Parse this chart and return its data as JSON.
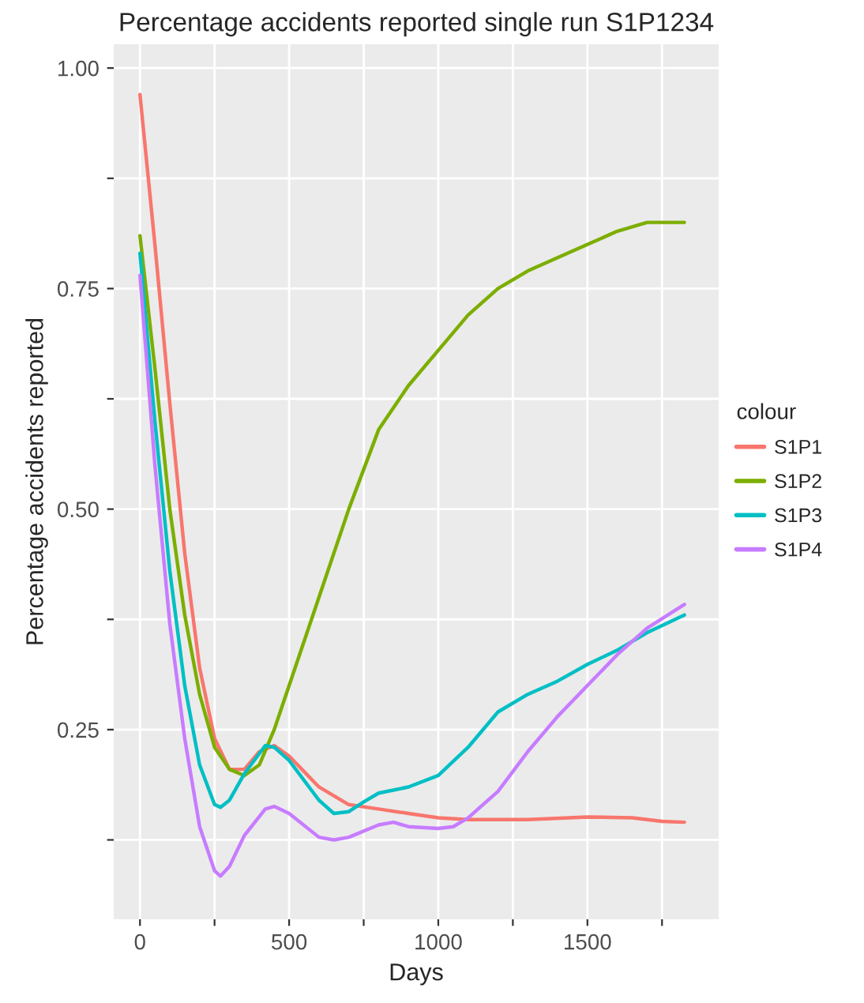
{
  "chart_data": {
    "type": "line",
    "title": "Percentage accidents reported single run S1P1234",
    "xlabel": "Days",
    "ylabel": "Percentage accidents reported",
    "legend_title": "colour",
    "legend": "right",
    "grid": true,
    "marker": "none",
    "line_style": "solid",
    "xlim": [
      -88,
      1940
    ],
    "ylim": [
      0.035,
      1.027
    ],
    "xticks": [
      0,
      {
        "value": 250,
        "label": null
      },
      500,
      {
        "value": 750,
        "label": null
      },
      1000,
      {
        "value": 1250,
        "label": null
      },
      1500,
      {
        "value": 1750,
        "label": null
      }
    ],
    "yticks": [
      {
        "value": 0.125,
        "label": null
      },
      {
        "value": 0.25,
        "label": "0.25"
      },
      {
        "value": 0.375,
        "label": null
      },
      {
        "value": 0.5,
        "label": "0.50"
      },
      {
        "value": 0.625,
        "label": null
      },
      {
        "value": 0.75,
        "label": "0.75"
      },
      {
        "value": 0.875,
        "label": null
      },
      {
        "value": 1.0,
        "label": "1.00"
      }
    ],
    "series": [
      {
        "name": "S1P1",
        "color": "#f8766d",
        "x": [
          0,
          50,
          100,
          150,
          200,
          250,
          300,
          350,
          400,
          450,
          500,
          600,
          700,
          800,
          900,
          1000,
          1100,
          1300,
          1500,
          1650,
          1750,
          1825
        ],
        "values": [
          0.97,
          0.8,
          0.62,
          0.45,
          0.32,
          0.24,
          0.205,
          0.205,
          0.225,
          0.232,
          0.22,
          0.185,
          0.165,
          0.16,
          0.155,
          0.15,
          0.148,
          0.148,
          0.151,
          0.15,
          0.146,
          0.145
        ]
      },
      {
        "name": "S1P2",
        "color": "#7cae00",
        "x": [
          0,
          50,
          100,
          150,
          200,
          250,
          300,
          350,
          400,
          450,
          500,
          600,
          700,
          800,
          900,
          1000,
          1100,
          1200,
          1300,
          1400,
          1500,
          1600,
          1700,
          1825
        ],
        "values": [
          0.81,
          0.66,
          0.5,
          0.38,
          0.29,
          0.23,
          0.205,
          0.198,
          0.21,
          0.25,
          0.3,
          0.4,
          0.5,
          0.59,
          0.64,
          0.68,
          0.72,
          0.75,
          0.77,
          0.785,
          0.8,
          0.815,
          0.825,
          0.825
        ]
      },
      {
        "name": "S1P3",
        "color": "#00bfc4",
        "x": [
          0,
          50,
          100,
          150,
          200,
          250,
          270,
          300,
          350,
          420,
          450,
          500,
          600,
          650,
          700,
          750,
          800,
          900,
          1000,
          1100,
          1200,
          1300,
          1400,
          1500,
          1600,
          1700,
          1825
        ],
        "values": [
          0.79,
          0.6,
          0.43,
          0.3,
          0.21,
          0.165,
          0.162,
          0.17,
          0.2,
          0.232,
          0.23,
          0.215,
          0.17,
          0.155,
          0.157,
          0.168,
          0.178,
          0.185,
          0.198,
          0.23,
          0.27,
          0.29,
          0.305,
          0.324,
          0.34,
          0.36,
          0.38
        ]
      },
      {
        "name": "S1P4",
        "color": "#c77cff",
        "x": [
          0,
          50,
          100,
          150,
          200,
          250,
          270,
          300,
          350,
          420,
          450,
          500,
          600,
          650,
          700,
          800,
          850,
          900,
          1000,
          1050,
          1100,
          1200,
          1300,
          1400,
          1500,
          1600,
          1700,
          1825
        ],
        "values": [
          0.765,
          0.55,
          0.37,
          0.24,
          0.14,
          0.09,
          0.084,
          0.095,
          0.13,
          0.16,
          0.163,
          0.155,
          0.128,
          0.125,
          0.128,
          0.142,
          0.145,
          0.14,
          0.138,
          0.14,
          0.15,
          0.18,
          0.225,
          0.265,
          0.3,
          0.335,
          0.365,
          0.392
        ]
      }
    ]
  }
}
